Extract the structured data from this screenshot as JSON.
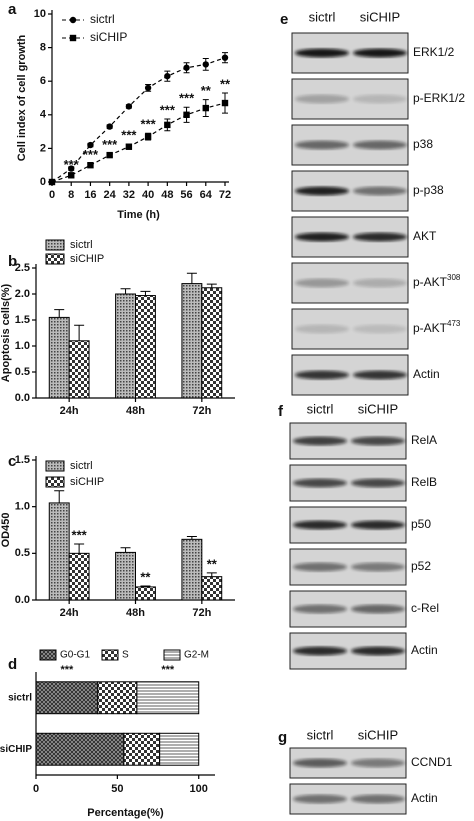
{
  "chart_data": [
    {
      "type": "line",
      "panel": "a",
      "x_label": "Time (h)",
      "y_label": "Cell index of cell growth",
      "x": [
        0,
        8,
        16,
        24,
        32,
        40,
        48,
        56,
        64,
        72
      ],
      "xlim": [
        0,
        72
      ],
      "xticks": [
        0,
        8,
        16,
        24,
        32,
        40,
        48,
        56,
        64,
        72
      ],
      "ylim": [
        0,
        10
      ],
      "yticks": [
        0,
        2,
        4,
        6,
        8,
        10
      ],
      "series": [
        {
          "name": "sictrl",
          "color": "#000000",
          "marker": "circle",
          "values": [
            0,
            0.8,
            2.2,
            3.3,
            4.5,
            5.6,
            6.3,
            6.8,
            7.0,
            7.4
          ],
          "errors": [
            0.05,
            0.1,
            0.1,
            0.1,
            0.1,
            0.2,
            0.3,
            0.3,
            0.35,
            0.3
          ]
        },
        {
          "name": "siCHIP",
          "color": "#000000",
          "marker": "square",
          "values": [
            0,
            0.4,
            1.0,
            1.6,
            2.1,
            2.7,
            3.4,
            4.0,
            4.4,
            4.7
          ],
          "errors": [
            0.05,
            0.1,
            0.1,
            0.1,
            0.15,
            0.2,
            0.35,
            0.45,
            0.5,
            0.6
          ]
        }
      ],
      "annotations": [
        {
          "x": 8,
          "text": "***"
        },
        {
          "x": 16,
          "text": "***"
        },
        {
          "x": 24,
          "text": "***"
        },
        {
          "x": 32,
          "text": "***"
        },
        {
          "x": 40,
          "text": "***"
        },
        {
          "x": 48,
          "text": "***"
        },
        {
          "x": 56,
          "text": "***"
        },
        {
          "x": 64,
          "text": "**"
        },
        {
          "x": 72,
          "text": "**"
        }
      ]
    },
    {
      "type": "grouped-bar",
      "panel": "b",
      "y_label": "Apoptosis cells(%)",
      "categories": [
        "24h",
        "48h",
        "72h"
      ],
      "ylim": [
        0,
        2.5
      ],
      "yticks": [
        {
          "value": 0,
          "label": "0.0"
        },
        {
          "value": 0.5,
          "label": "0.5"
        },
        {
          "value": 1,
          "label": "1.0"
        },
        {
          "value": 1.5,
          "label": "1.5"
        },
        {
          "value": 2,
          "label": "2.0"
        },
        {
          "value": 2.5,
          "label": "2.5"
        }
      ],
      "series": [
        {
          "name": "sictrl",
          "pattern": "dots",
          "values": [
            1.55,
            2.0,
            2.2
          ],
          "errors": [
            0.15,
            0.1,
            0.2
          ]
        },
        {
          "name": "siCHIP",
          "pattern": "checker",
          "values": [
            1.1,
            1.97,
            2.12
          ],
          "errors": [
            0.3,
            0.08,
            0.07
          ]
        }
      ],
      "annotations": []
    },
    {
      "type": "grouped-bar",
      "panel": "c",
      "y_label": "OD450",
      "categories": [
        "24h",
        "48h",
        "72h"
      ],
      "ylim": [
        0,
        1.5
      ],
      "yticks": [
        {
          "value": 0,
          "label": "0.0"
        },
        {
          "value": 0.5,
          "label": "0.5"
        },
        {
          "value": 1,
          "label": "1.0"
        },
        {
          "value": 1.5,
          "label": "1.5"
        }
      ],
      "series": [
        {
          "name": "sictrl",
          "pattern": "dots",
          "values": [
            1.04,
            0.51,
            0.65
          ],
          "errors": [
            0.13,
            0.05,
            0.03
          ]
        },
        {
          "name": "siCHIP",
          "pattern": "checker",
          "values": [
            0.5,
            0.14,
            0.25
          ],
          "errors": [
            0.1,
            0.01,
            0.04
          ]
        }
      ],
      "annotations": [
        {
          "category": "24h",
          "text": "***"
        },
        {
          "category": "48h",
          "text": "**"
        },
        {
          "category": "72h",
          "text": "**"
        }
      ]
    },
    {
      "type": "stacked-hbar",
      "panel": "d",
      "x_label": "Percentage(%)",
      "categories": [
        "sictrl",
        "siCHIP"
      ],
      "xlim": [
        0,
        110
      ],
      "xticks": [
        0,
        50,
        100
      ],
      "series": [
        {
          "name": "G0-G1",
          "pattern": "cross",
          "values": [
            38,
            54
          ]
        },
        {
          "name": "S",
          "pattern": "checker",
          "values": [
            24,
            22
          ]
        },
        {
          "name": "G2-M",
          "pattern": "hlines",
          "values": [
            38,
            24
          ]
        }
      ],
      "annotations": [
        {
          "series": "G0-G1",
          "text": "***"
        },
        {
          "series": "G2-M",
          "text": "***"
        }
      ]
    }
  ],
  "blots": [
    {
      "panel": "e",
      "columns": [
        "sictrl",
        "siCHIP"
      ],
      "rows": [
        "ERK1/2",
        "p-ERK1/2",
        "p38",
        "p-p38",
        "AKT",
        {
          "text": "p-AKT",
          "sup": "308"
        },
        {
          "text": "p-AKT",
          "sup": "473"
        },
        "Actin"
      ]
    },
    {
      "panel": "f",
      "columns": [
        "sictrl",
        "siCHIP"
      ],
      "rows": [
        "RelA",
        "RelB",
        "p50",
        "p52",
        "c-Rel",
        "Actin"
      ]
    },
    {
      "panel": "g",
      "columns": [
        "sictrl",
        "siCHIP"
      ],
      "rows": [
        "CCND1",
        "Actin"
      ]
    }
  ]
}
